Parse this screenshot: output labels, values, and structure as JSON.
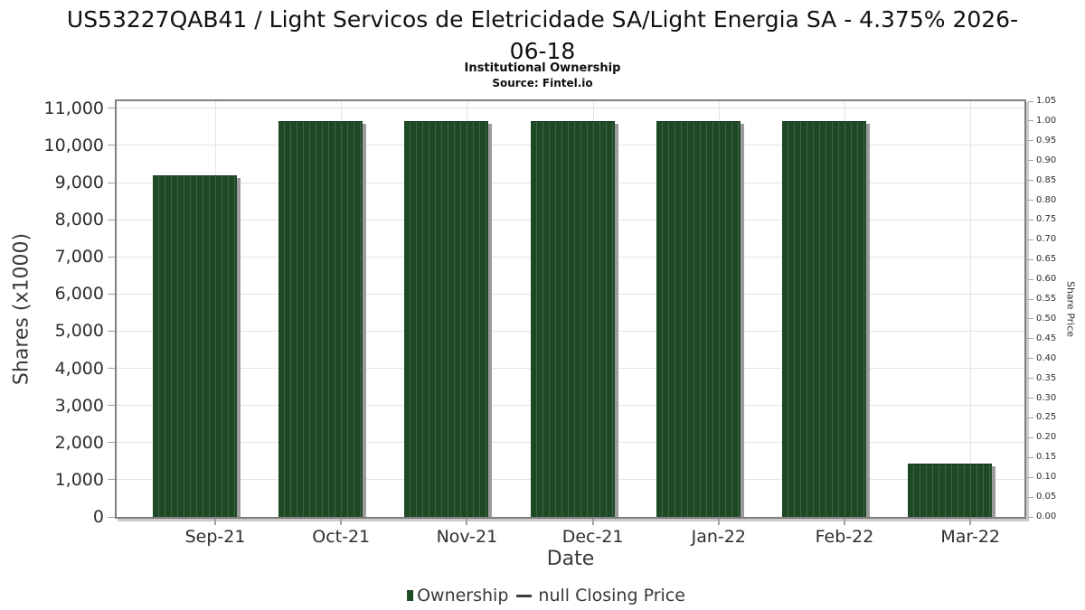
{
  "header": {
    "title_line1": "US53227QAB41 / Light Servicos de Eletricidade SA/Light Energia SA - 4.375% 2026-",
    "title_line2": "06-18",
    "subtitle": "Institutional Ownership",
    "source": "Source: Fintel.io"
  },
  "chart_data": {
    "type": "bar",
    "title": "US53227QAB41 / Light Servicos de Eletricidade SA/Light Energia SA - 4.375% 2026-06-18",
    "subtitle": "Institutional Ownership",
    "source": "Source: Fintel.io",
    "categories": [
      "Sep-21",
      "Oct-21",
      "Nov-21",
      "Dec-21",
      "Jan-22",
      "Feb-22",
      "Mar-22"
    ],
    "series": [
      {
        "name": "Ownership",
        "type": "bar",
        "values": [
          9200,
          10660,
          10660,
          10660,
          10660,
          10660,
          1430
        ]
      },
      {
        "name": "null Closing Price",
        "type": "line",
        "values": []
      }
    ],
    "xlabel": "Date",
    "ylabel_left": "Shares (x1000)",
    "ylabel_right": "Share Price",
    "y_left": {
      "min": 0,
      "max": 11000,
      "step": 1000,
      "display_max": 11190
    },
    "y_right": {
      "min": 0,
      "max": 1.05,
      "step": 0.05
    },
    "y_left_tick_labels": [
      "0",
      "1,000",
      "2,000",
      "3,000",
      "4,000",
      "5,000",
      "6,000",
      "7,000",
      "8,000",
      "9,000",
      "10,000",
      "11,000"
    ],
    "y_right_tick_labels": [
      "0.00",
      "0.05",
      "0.10",
      "0.15",
      "0.20",
      "0.25",
      "0.30",
      "0.35",
      "0.40",
      "0.45",
      "0.50",
      "0.55",
      "0.60",
      "0.65",
      "0.70",
      "0.75",
      "0.80",
      "0.85",
      "0.90",
      "0.95",
      "1.00",
      "1.05"
    ],
    "grid": true,
    "legend_position": "bottom"
  },
  "legend": {
    "ownership_label": "Ownership",
    "price_label": "null Closing Price"
  },
  "colors": {
    "bar_fill": "#1d4a24",
    "bar_stripe": "#426349",
    "bar_shadow": "#9c9c9c",
    "frame_border": "#7f7f7f",
    "gridline": "#e4e4e4",
    "tick": "#a2a2a2",
    "axis_text": "#2e2e2e",
    "title_text": "#111111"
  }
}
